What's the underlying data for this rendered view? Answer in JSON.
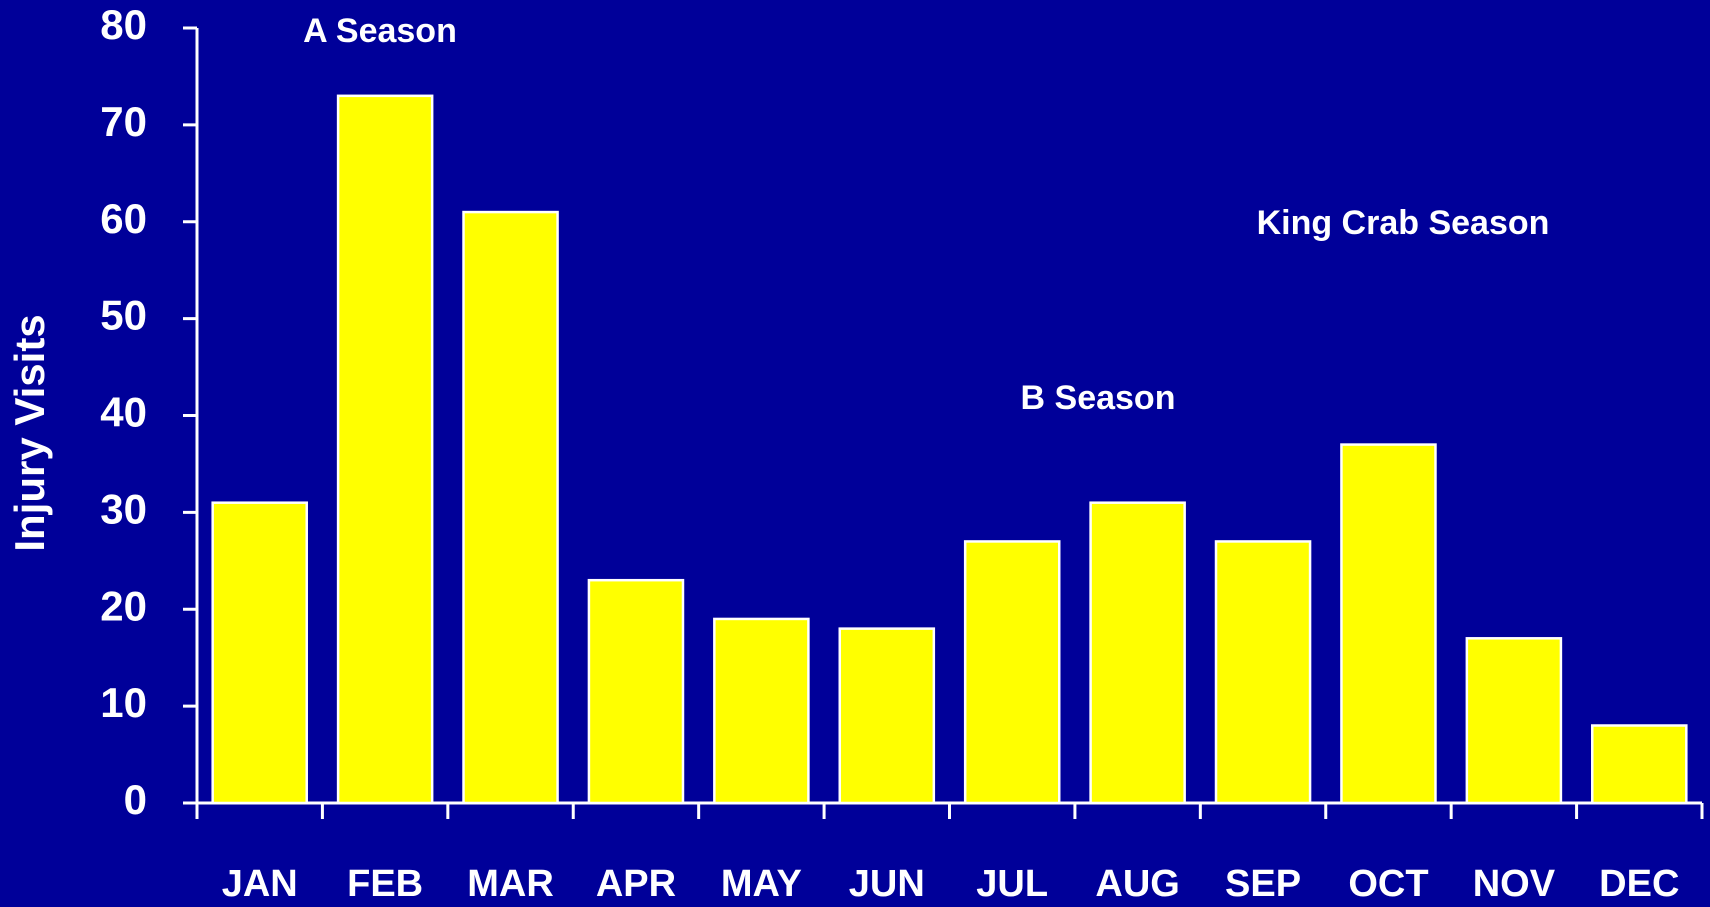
{
  "chart_data": {
    "type": "bar",
    "y_label": "Injury Visits",
    "categories": [
      "JAN",
      "FEB",
      "MAR",
      "APR",
      "MAY",
      "JUN",
      "JUL",
      "AUG",
      "SEP",
      "OCT",
      "NOV",
      "DEC"
    ],
    "values": [
      31,
      73,
      61,
      23,
      19,
      18,
      27,
      31,
      27,
      37,
      17,
      8
    ],
    "color": "#ffff00",
    "ylim": [
      0,
      80
    ],
    "yticks": [
      0,
      10,
      20,
      30,
      40,
      50,
      60,
      70,
      80
    ],
    "annotations": [
      "A Season",
      "King Crab Season",
      "B Season"
    ]
  }
}
